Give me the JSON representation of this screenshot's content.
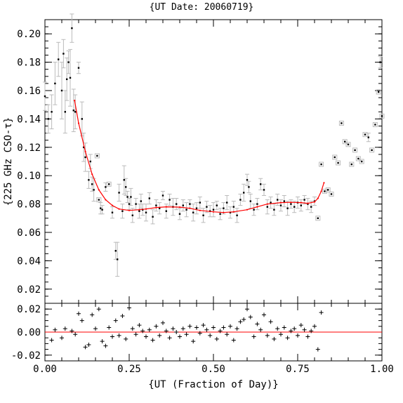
{
  "chart_data": [
    {
      "type": "scatter",
      "title": "{UT Date: 20060719}",
      "xlabel": "{UT (Fraction of Day)}",
      "ylabel": "{225 GHz CSO-τ}",
      "xlim": [
        0.0,
        1.0
      ],
      "ylim": [
        0.01,
        0.21
      ],
      "x_ticks": [
        "0.00",
        "0.25",
        "0.50",
        "0.75",
        "1.00"
      ],
      "y_ticks": [
        "0.02",
        "0.04",
        "0.06",
        "0.08",
        "0.10",
        "0.12",
        "0.14",
        "0.16",
        "0.18",
        "0.20"
      ],
      "grid": false,
      "colors": {
        "points": "#000000",
        "error_bars": "#bbbbbb",
        "fit": "#ff0000"
      },
      "series": [
        {
          "type": "scatter_with_error_bars",
          "points": [
            [
              0.0,
              0.156,
              0.01
            ],
            [
              0.01,
              0.14,
              0.01
            ],
            [
              0.02,
              0.145,
              0.012
            ],
            [
              0.03,
              0.165,
              0.015
            ],
            [
              0.04,
              0.182,
              0.012
            ],
            [
              0.05,
              0.16,
              0.02
            ],
            [
              0.055,
              0.186,
              0.01
            ],
            [
              0.06,
              0.145,
              0.015
            ],
            [
              0.065,
              0.168,
              0.015
            ],
            [
              0.07,
              0.18,
              0.008
            ],
            [
              0.075,
              0.169,
              0.02
            ],
            [
              0.08,
              0.204,
              0.01
            ],
            [
              0.085,
              0.146,
              0.015
            ],
            [
              0.09,
              0.145,
              0.012
            ],
            [
              0.1,
              0.176,
              0.004
            ],
            [
              0.11,
              0.14,
              0.012
            ],
            [
              0.115,
              0.12,
              0.01
            ],
            [
              0.12,
              0.113,
              0.01
            ],
            [
              0.13,
              0.097,
              0.006
            ],
            [
              0.135,
              0.11,
              0.005
            ],
            [
              0.14,
              0.094,
              0.005
            ],
            [
              0.145,
              0.09,
              0.008
            ],
            [
              0.155,
              0.114,
              0.002
            ],
            [
              0.16,
              0.083,
              0.002
            ],
            [
              0.165,
              0.077,
              0.004
            ],
            [
              0.17,
              0.076,
              0.003
            ],
            [
              0.18,
              0.092,
              0.003
            ],
            [
              0.19,
              0.094,
              0.002
            ],
            [
              0.2,
              0.074,
              0.004
            ],
            [
              0.21,
              0.047,
              0.006
            ],
            [
              0.215,
              0.041,
              0.012
            ],
            [
              0.22,
              0.088,
              0.006
            ],
            [
              0.23,
              0.075,
              0.005
            ],
            [
              0.235,
              0.097,
              0.01
            ],
            [
              0.24,
              0.092,
              0.006
            ],
            [
              0.245,
              0.085,
              0.004
            ],
            [
              0.25,
              0.08,
              0.004
            ],
            [
              0.255,
              0.085,
              0.006
            ],
            [
              0.26,
              0.072,
              0.005
            ],
            [
              0.27,
              0.08,
              0.004
            ],
            [
              0.28,
              0.075,
              0.005
            ],
            [
              0.285,
              0.082,
              0.005
            ],
            [
              0.29,
              0.076,
              0.004
            ],
            [
              0.3,
              0.074,
              0.006
            ],
            [
              0.31,
              0.084,
              0.004
            ],
            [
              0.32,
              0.071,
              0.005
            ],
            [
              0.33,
              0.079,
              0.004
            ],
            [
              0.34,
              0.077,
              0.004
            ],
            [
              0.35,
              0.086,
              0.003
            ],
            [
              0.36,
              0.075,
              0.005
            ],
            [
              0.37,
              0.083,
              0.004
            ],
            [
              0.38,
              0.078,
              0.006
            ],
            [
              0.39,
              0.08,
              0.004
            ],
            [
              0.4,
              0.073,
              0.004
            ],
            [
              0.41,
              0.079,
              0.004
            ],
            [
              0.42,
              0.076,
              0.005
            ],
            [
              0.43,
              0.08,
              0.003
            ],
            [
              0.44,
              0.074,
              0.006
            ],
            [
              0.45,
              0.077,
              0.004
            ],
            [
              0.46,
              0.081,
              0.004
            ],
            [
              0.47,
              0.072,
              0.005
            ],
            [
              0.48,
              0.078,
              0.004
            ],
            [
              0.49,
              0.075,
              0.004
            ],
            [
              0.5,
              0.076,
              0.005
            ],
            [
              0.51,
              0.079,
              0.003
            ],
            [
              0.52,
              0.073,
              0.004
            ],
            [
              0.53,
              0.077,
              0.004
            ],
            [
              0.54,
              0.081,
              0.005
            ],
            [
              0.55,
              0.074,
              0.004
            ],
            [
              0.56,
              0.078,
              0.004
            ],
            [
              0.57,
              0.072,
              0.005
            ],
            [
              0.58,
              0.083,
              0.004
            ],
            [
              0.59,
              0.088,
              0.006
            ],
            [
              0.6,
              0.097,
              0.004
            ],
            [
              0.605,
              0.092,
              0.004
            ],
            [
              0.61,
              0.082,
              0.005
            ],
            [
              0.62,
              0.076,
              0.004
            ],
            [
              0.63,
              0.08,
              0.004
            ],
            [
              0.64,
              0.094,
              0.004
            ],
            [
              0.65,
              0.09,
              0.004
            ],
            [
              0.66,
              0.078,
              0.005
            ],
            [
              0.67,
              0.081,
              0.004
            ],
            [
              0.68,
              0.076,
              0.004
            ],
            [
              0.69,
              0.083,
              0.004
            ],
            [
              0.7,
              0.079,
              0.004
            ],
            [
              0.71,
              0.082,
              0.004
            ],
            [
              0.72,
              0.077,
              0.005
            ],
            [
              0.73,
              0.08,
              0.003
            ],
            [
              0.74,
              0.078,
              0.004
            ],
            [
              0.75,
              0.081,
              0.004
            ],
            [
              0.76,
              0.079,
              0.004
            ],
            [
              0.77,
              0.083,
              0.003
            ],
            [
              0.78,
              0.08,
              0.004
            ],
            [
              0.79,
              0.078,
              0.004
            ],
            [
              0.8,
              0.082,
              0.003
            ],
            [
              0.81,
              0.07,
              0.002
            ],
            [
              0.82,
              0.108,
              0.002
            ],
            [
              0.83,
              0.089,
              0.002
            ],
            [
              0.84,
              0.09,
              0.002
            ],
            [
              0.85,
              0.087,
              0.002
            ],
            [
              0.86,
              0.113,
              0.002
            ],
            [
              0.87,
              0.109,
              0.002
            ],
            [
              0.88,
              0.137,
              0.002
            ],
            [
              0.89,
              0.124,
              0.002
            ],
            [
              0.9,
              0.122,
              0.002
            ],
            [
              0.91,
              0.108,
              0.002
            ],
            [
              0.92,
              0.118,
              0.002
            ],
            [
              0.93,
              0.112,
              0.002
            ],
            [
              0.94,
              0.11,
              0.002
            ],
            [
              0.95,
              0.129,
              0.002
            ],
            [
              0.96,
              0.127,
              0.003
            ],
            [
              0.97,
              0.118,
              0.002
            ],
            [
              0.98,
              0.136,
              0.002
            ],
            [
              0.99,
              0.159,
              0.002
            ],
            [
              0.995,
              0.18,
              0.004
            ],
            [
              1.0,
              0.142,
              0.002
            ]
          ]
        },
        {
          "type": "fit_line",
          "x": [
            0.088,
            0.1,
            0.12,
            0.14,
            0.16,
            0.18,
            0.2,
            0.22,
            0.25,
            0.28,
            0.3,
            0.33,
            0.36,
            0.4,
            0.43,
            0.46,
            0.5,
            0.53,
            0.56,
            0.6,
            0.63,
            0.66,
            0.7,
            0.73,
            0.76,
            0.78,
            0.8,
            0.81,
            0.82,
            0.828
          ],
          "y": [
            0.153,
            0.137,
            0.117,
            0.101,
            0.09,
            0.083,
            0.079,
            0.0765,
            0.0755,
            0.076,
            0.0765,
            0.0775,
            0.078,
            0.0778,
            0.077,
            0.0755,
            0.0745,
            0.074,
            0.0745,
            0.076,
            0.078,
            0.08,
            0.081,
            0.0812,
            0.081,
            0.0805,
            0.0815,
            0.084,
            0.089,
            0.095
          ]
        }
      ]
    },
    {
      "type": "scatter",
      "xlim": [
        0.0,
        1.0
      ],
      "ylim": [
        -0.025,
        0.025
      ],
      "y_ticks": [
        "0.02",
        "0.00",
        "-0.02"
      ],
      "reference_line_y": 0.0,
      "colors": {
        "points": "#000000",
        "reference": "#ff0000"
      },
      "series": [
        {
          "type": "residuals",
          "x": [
            0.02,
            0.03,
            0.05,
            0.06,
            0.08,
            0.09,
            0.1,
            0.11,
            0.12,
            0.13,
            0.14,
            0.15,
            0.16,
            0.17,
            0.18,
            0.19,
            0.2,
            0.21,
            0.22,
            0.23,
            0.24,
            0.25,
            0.26,
            0.27,
            0.28,
            0.29,
            0.3,
            0.31,
            0.32,
            0.33,
            0.34,
            0.35,
            0.36,
            0.37,
            0.38,
            0.39,
            0.4,
            0.41,
            0.42,
            0.43,
            0.44,
            0.45,
            0.46,
            0.47,
            0.48,
            0.49,
            0.5,
            0.51,
            0.52,
            0.53,
            0.54,
            0.55,
            0.56,
            0.57,
            0.58,
            0.59,
            0.6,
            0.61,
            0.62,
            0.63,
            0.64,
            0.65,
            0.66,
            0.67,
            0.68,
            0.69,
            0.7,
            0.71,
            0.72,
            0.73,
            0.74,
            0.75,
            0.76,
            0.77,
            0.78,
            0.79,
            0.8,
            0.81,
            0.82
          ],
          "y": [
            -0.007,
            0.002,
            -0.005,
            0.003,
            0.001,
            -0.002,
            0.016,
            0.01,
            -0.013,
            -0.011,
            0.015,
            0.003,
            0.02,
            -0.008,
            -0.012,
            0.004,
            -0.004,
            0.01,
            -0.003,
            0.014,
            -0.006,
            0.021,
            0.003,
            -0.002,
            0.006,
            0.001,
            -0.004,
            0.002,
            -0.007,
            0.005,
            -0.003,
            0.008,
            0.001,
            -0.005,
            0.003,
            0.0,
            -0.004,
            0.003,
            -0.002,
            0.005,
            -0.008,
            0.004,
            -0.001,
            0.006,
            0.002,
            -0.003,
            0.004,
            -0.006,
            0.001,
            0.004,
            -0.002,
            0.005,
            -0.007,
            0.003,
            0.009,
            0.011,
            0.02,
            0.013,
            -0.004,
            0.007,
            0.002,
            0.015,
            -0.003,
            0.009,
            -0.006,
            0.003,
            -0.002,
            0.004,
            -0.005,
            0.001,
            0.003,
            -0.003,
            0.006,
            0.002,
            -0.004,
            0.001,
            0.005,
            -0.015,
            0.017
          ]
        }
      ]
    }
  ]
}
